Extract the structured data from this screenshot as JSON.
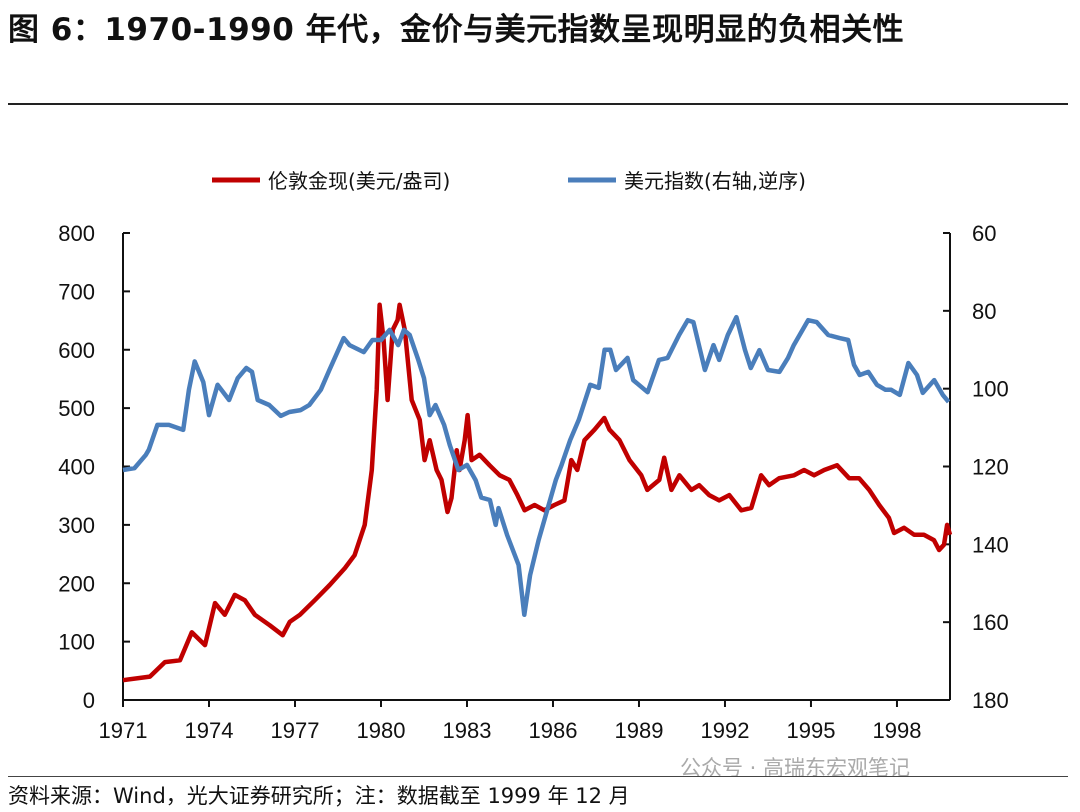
{
  "title": "图 6：1970-1990 年代，金价与美元指数呈现明显的负相关性",
  "source": "资料来源：Wind，光大证券研究所；注：数据截至 1999 年 12 月",
  "watermark": "公众号 · 高瑞东宏观笔记",
  "chart_data": {
    "type": "line",
    "legend_placement": "top",
    "grid": false,
    "xlim": [
      1971,
      1999.85
    ],
    "x_ticks": [
      "1971",
      "1974",
      "1977",
      "1980",
      "1983",
      "1986",
      "1989",
      "1992",
      "1995",
      "1998"
    ],
    "y_left": {
      "range": [
        0,
        800
      ],
      "ticks": [
        "0",
        "100",
        "200",
        "300",
        "400",
        "500",
        "600",
        "700",
        "800"
      ]
    },
    "y_right": {
      "range": [
        60,
        180
      ],
      "reversed": true,
      "ticks": [
        "60",
        "80",
        "100",
        "120",
        "140",
        "160",
        "180"
      ]
    },
    "series": [
      {
        "name": "伦敦金现(美元/盎司)",
        "axis": "left",
        "color": "#C00000",
        "x": [
          1971.0,
          1971.94,
          1972.46,
          1972.99,
          1973.4,
          1973.86,
          1974.21,
          1974.55,
          1974.9,
          1975.25,
          1975.6,
          1976.12,
          1976.57,
          1976.82,
          1977.17,
          1977.69,
          1978.21,
          1978.74,
          1979.08,
          1979.43,
          1979.68,
          1979.85,
          1979.95,
          1980.09,
          1980.23,
          1980.41,
          1980.58,
          1980.65,
          1980.83,
          1981.07,
          1981.35,
          1981.52,
          1981.7,
          1981.94,
          1982.11,
          1982.32,
          1982.46,
          1982.64,
          1982.74,
          1982.92,
          1983.02,
          1983.16,
          1983.44,
          1983.79,
          1984.14,
          1984.48,
          1984.76,
          1985.01,
          1985.36,
          1985.7,
          1986.05,
          1986.4,
          1986.64,
          1986.85,
          1987.1,
          1987.45,
          1987.79,
          1987.97,
          1988.32,
          1988.67,
          1989.08,
          1989.29,
          1989.71,
          1989.88,
          1990.13,
          1990.41,
          1990.83,
          1991.1,
          1991.45,
          1991.8,
          1992.15,
          1992.57,
          1992.92,
          1993.26,
          1993.54,
          1993.89,
          1994.41,
          1994.76,
          1995.11,
          1995.46,
          1995.91,
          1996.33,
          1996.68,
          1997.03,
          1997.38,
          1997.72,
          1997.9,
          1998.25,
          1998.6,
          1998.94,
          1999.29,
          1999.47,
          1999.64,
          1999.75,
          1999.85
        ],
        "y": [
          34,
          40,
          65,
          68,
          116,
          94,
          166,
          146,
          180,
          171,
          146,
          128,
          111,
          134,
          146,
          171,
          197,
          226,
          248,
          300,
          394,
          531,
          677,
          617,
          514,
          634,
          651,
          677,
          634,
          514,
          480,
          411,
          445,
          394,
          377,
          322,
          346,
          428,
          394,
          445,
          488,
          411,
          420,
          402,
          385,
          377,
          351,
          325,
          334,
          325,
          334,
          342,
          411,
          394,
          445,
          463,
          483,
          463,
          445,
          411,
          385,
          360,
          377,
          415,
          360,
          385,
          360,
          368,
          351,
          342,
          351,
          325,
          329,
          385,
          368,
          380,
          385,
          394,
          385,
          394,
          402,
          380,
          380,
          360,
          334,
          312,
          286,
          295,
          283,
          283,
          274,
          257,
          266,
          300,
          283
        ]
      },
      {
        "name": "美元指数(右轴,逆序)",
        "axis": "right",
        "color": "#4A7EBB",
        "x": [
          1971.0,
          1971.4,
          1971.8,
          1971.9,
          1972.2,
          1972.6,
          1973.1,
          1973.3,
          1973.5,
          1973.8,
          1974.0,
          1974.3,
          1974.7,
          1975.0,
          1975.3,
          1975.5,
          1975.7,
          1976.1,
          1976.5,
          1976.8,
          1977.2,
          1977.5,
          1977.9,
          1978.2,
          1978.7,
          1978.9,
          1979.4,
          1979.7,
          1980.0,
          1980.3,
          1980.6,
          1980.8,
          1981.0,
          1981.3,
          1981.5,
          1981.7,
          1981.9,
          1982.2,
          1982.4,
          1982.7,
          1983.0,
          1983.3,
          1983.5,
          1983.8,
          1984.0,
          1984.1,
          1984.4,
          1984.8,
          1985.0,
          1985.2,
          1985.5,
          1985.8,
          1986.1,
          1986.3,
          1986.6,
          1986.9,
          1987.3,
          1987.6,
          1987.8,
          1988.0,
          1988.2,
          1988.6,
          1988.8,
          1989.3,
          1989.7,
          1990.0,
          1990.4,
          1990.7,
          1990.9,
          1991.3,
          1991.6,
          1991.8,
          1992.1,
          1992.4,
          1992.7,
          1992.9,
          1993.2,
          1993.5,
          1993.9,
          1994.2,
          1994.4,
          1994.9,
          1995.2,
          1995.6,
          1996.0,
          1996.3,
          1996.5,
          1996.7,
          1997.0,
          1997.3,
          1997.6,
          1997.8,
          1998.1,
          1998.4,
          1998.7,
          1998.9,
          1999.3,
          1999.6,
          1999.8
        ],
        "y": [
          120.9,
          120.4,
          117.0,
          115.7,
          109.3,
          109.3,
          110.6,
          100.3,
          93.0,
          98.3,
          106.8,
          99.0,
          102.9,
          97.3,
          94.7,
          95.7,
          102.9,
          104.2,
          107.0,
          106.0,
          105.5,
          104.2,
          100.3,
          95.2,
          87.0,
          88.8,
          90.6,
          87.5,
          87.5,
          84.9,
          88.8,
          84.9,
          86.2,
          92.6,
          97.3,
          106.8,
          104.2,
          109.3,
          114.5,
          120.9,
          119.6,
          123.5,
          128.0,
          128.6,
          135.0,
          130.7,
          137.6,
          145.3,
          158.1,
          147.9,
          138.9,
          131.2,
          123.5,
          119.6,
          113.2,
          108.0,
          99.0,
          99.8,
          90.0,
          90.0,
          95.2,
          92.1,
          97.8,
          100.9,
          92.6,
          92.1,
          86.2,
          82.4,
          82.9,
          95.2,
          88.8,
          92.6,
          86.2,
          81.6,
          90.1,
          94.7,
          90.1,
          95.2,
          95.7,
          92.1,
          88.8,
          82.4,
          82.9,
          86.2,
          87.0,
          87.5,
          93.9,
          96.5,
          95.7,
          99.0,
          100.3,
          100.3,
          101.6,
          93.4,
          96.5,
          101.1,
          97.8,
          101.6,
          103.4
        ]
      }
    ]
  }
}
